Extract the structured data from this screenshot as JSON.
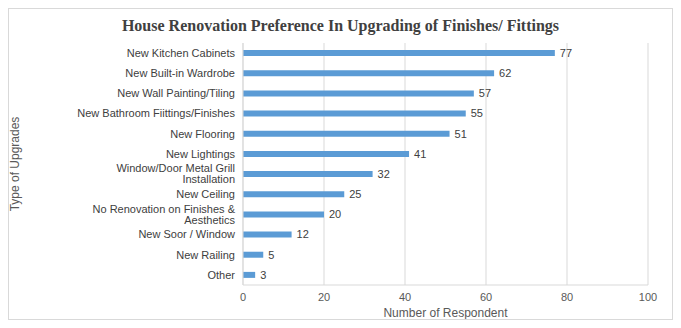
{
  "chart_data": {
    "type": "bar",
    "title": "House Renovation Preference In Upgrading of Finishes/ Fittings",
    "x_label": "Number of Respondent",
    "y_label": "Type of Upgrades",
    "orientation": "horizontal",
    "categories": [
      "New Kitchen Cabinets",
      "New Built-in Wardrobe",
      "New Wall Painting/Tiling",
      "New Bathroom Fiittings/Finishes",
      "New Flooring",
      "New Lightings",
      "Window/Door Metal Grill Installation",
      "New Ceiling",
      "No Renovation on Finishes & Aesthetics",
      "New Soor / Window",
      "New Railing",
      "Other"
    ],
    "values": [
      77,
      62,
      57,
      55,
      51,
      41,
      32,
      25,
      20,
      12,
      5,
      3
    ],
    "color": "#5b9bd5",
    "xlim": [
      0,
      100
    ],
    "xticks": [
      0,
      20,
      40,
      60,
      80,
      100
    ],
    "grid": true,
    "data_labels": true
  }
}
